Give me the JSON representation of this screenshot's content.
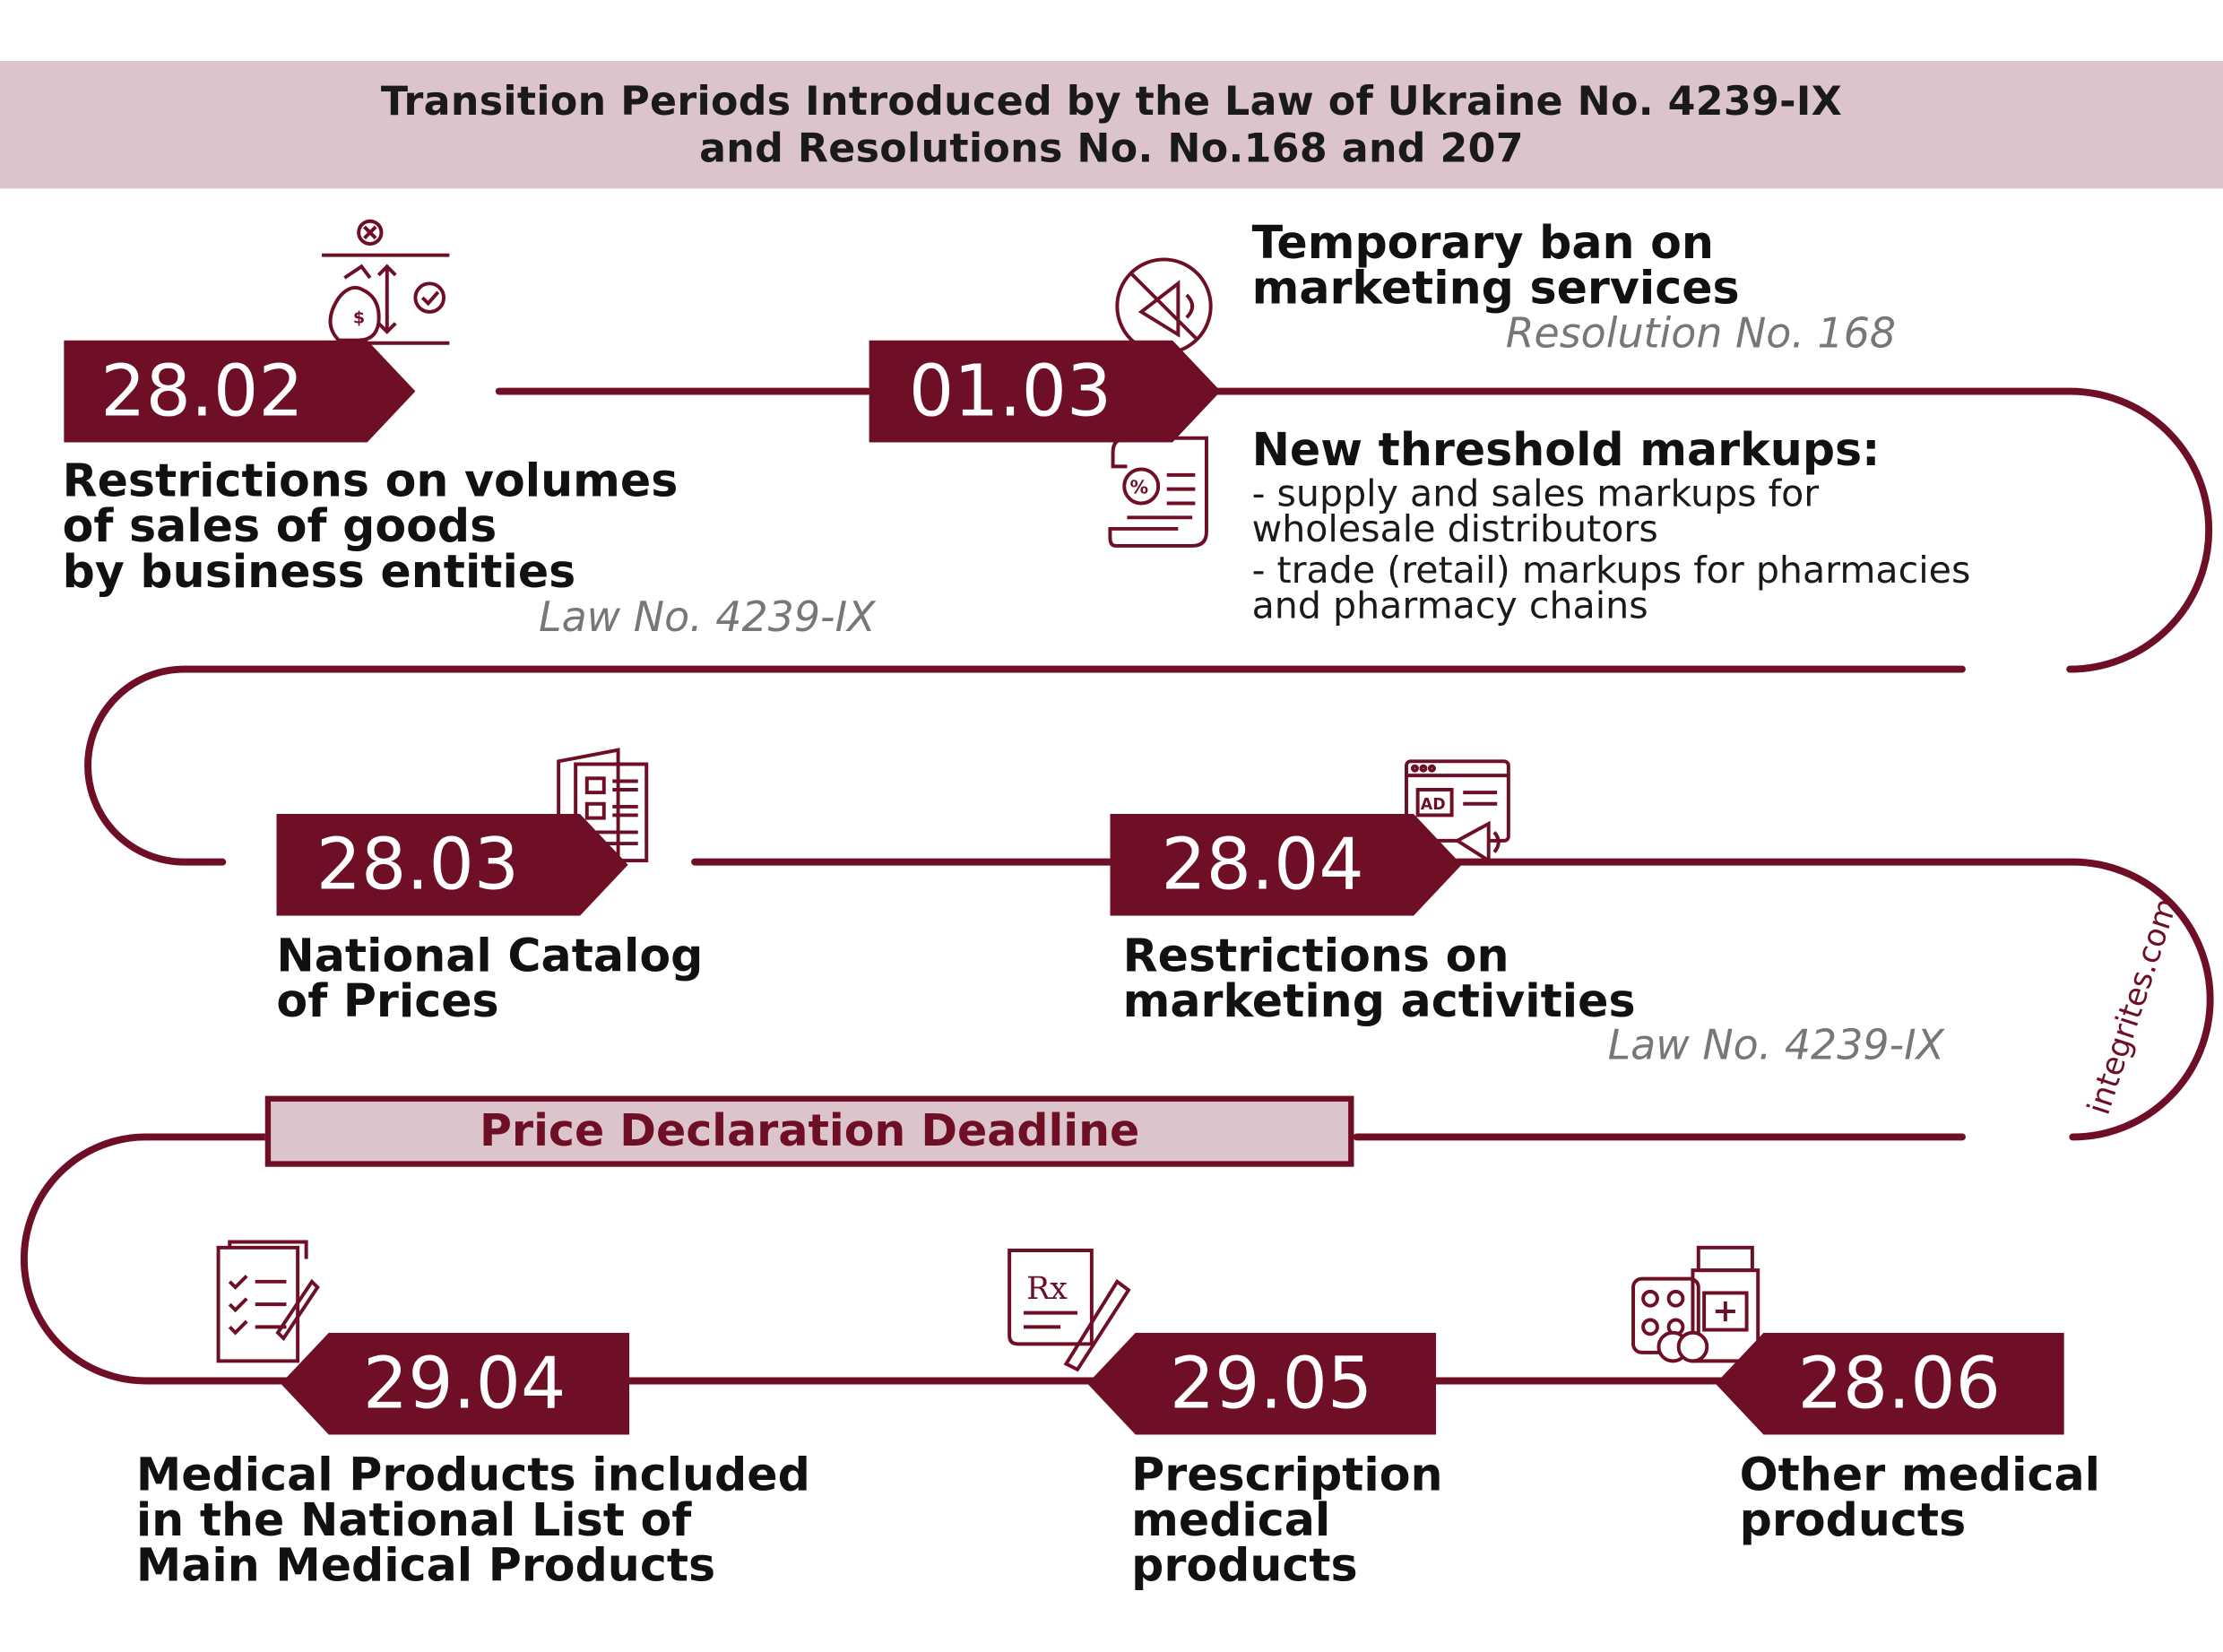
{
  "title": {
    "line1": "Transition Periods Introduced by the Law of Ukraine No. 4239-IX",
    "line2": "and Resolutions No. No.168 and 207"
  },
  "milestones": [
    {
      "date": "28.02",
      "heading": [
        "Restrictions on volumes",
        "of sales of goods",
        "by business entities"
      ],
      "source": "Law No. 4239-IX",
      "icon": "money-bag-scale-icon"
    },
    {
      "date": "01.03",
      "items": [
        {
          "heading": [
            "Temporary ban on",
            "marketing services"
          ],
          "source": "Resolution No. 168",
          "icon": "no-megaphone-icon"
        },
        {
          "heading": [
            "New threshold markups:"
          ],
          "lines": [
            "- supply and sales markups for",
            "wholesale distributors",
            "- trade (retail) markups for pharmacies",
            "and pharmacy chains"
          ],
          "icon": "percent-receipt-icon"
        }
      ]
    },
    {
      "date": "28.03",
      "heading": [
        "National Catalog",
        "of Prices"
      ],
      "icon": "catalog-icon"
    },
    {
      "date": "28.04",
      "heading": [
        "Restrictions on",
        "marketing activities"
      ],
      "source": "Law No. 4239-IX",
      "icon": "ad-megaphone-icon"
    },
    {
      "date": "29.04",
      "heading": [
        "Medical Products included",
        "in the National List of",
        "Main Medical Products"
      ],
      "icon": "checklist-pen-icon"
    },
    {
      "date": "29.05",
      "heading": [
        "Prescription",
        "medical",
        "products"
      ],
      "icon": "prescription-icon"
    },
    {
      "date": "28.06",
      "heading": [
        "Other medical",
        "products"
      ],
      "icon": "medicine-pills-icon"
    }
  ],
  "deadline_label": "Price Declaration Deadline",
  "watermark": "integrites.com",
  "colors": {
    "accent": "#6e0f26",
    "banner": "#dbc4cb",
    "source_gray": "#777777"
  }
}
